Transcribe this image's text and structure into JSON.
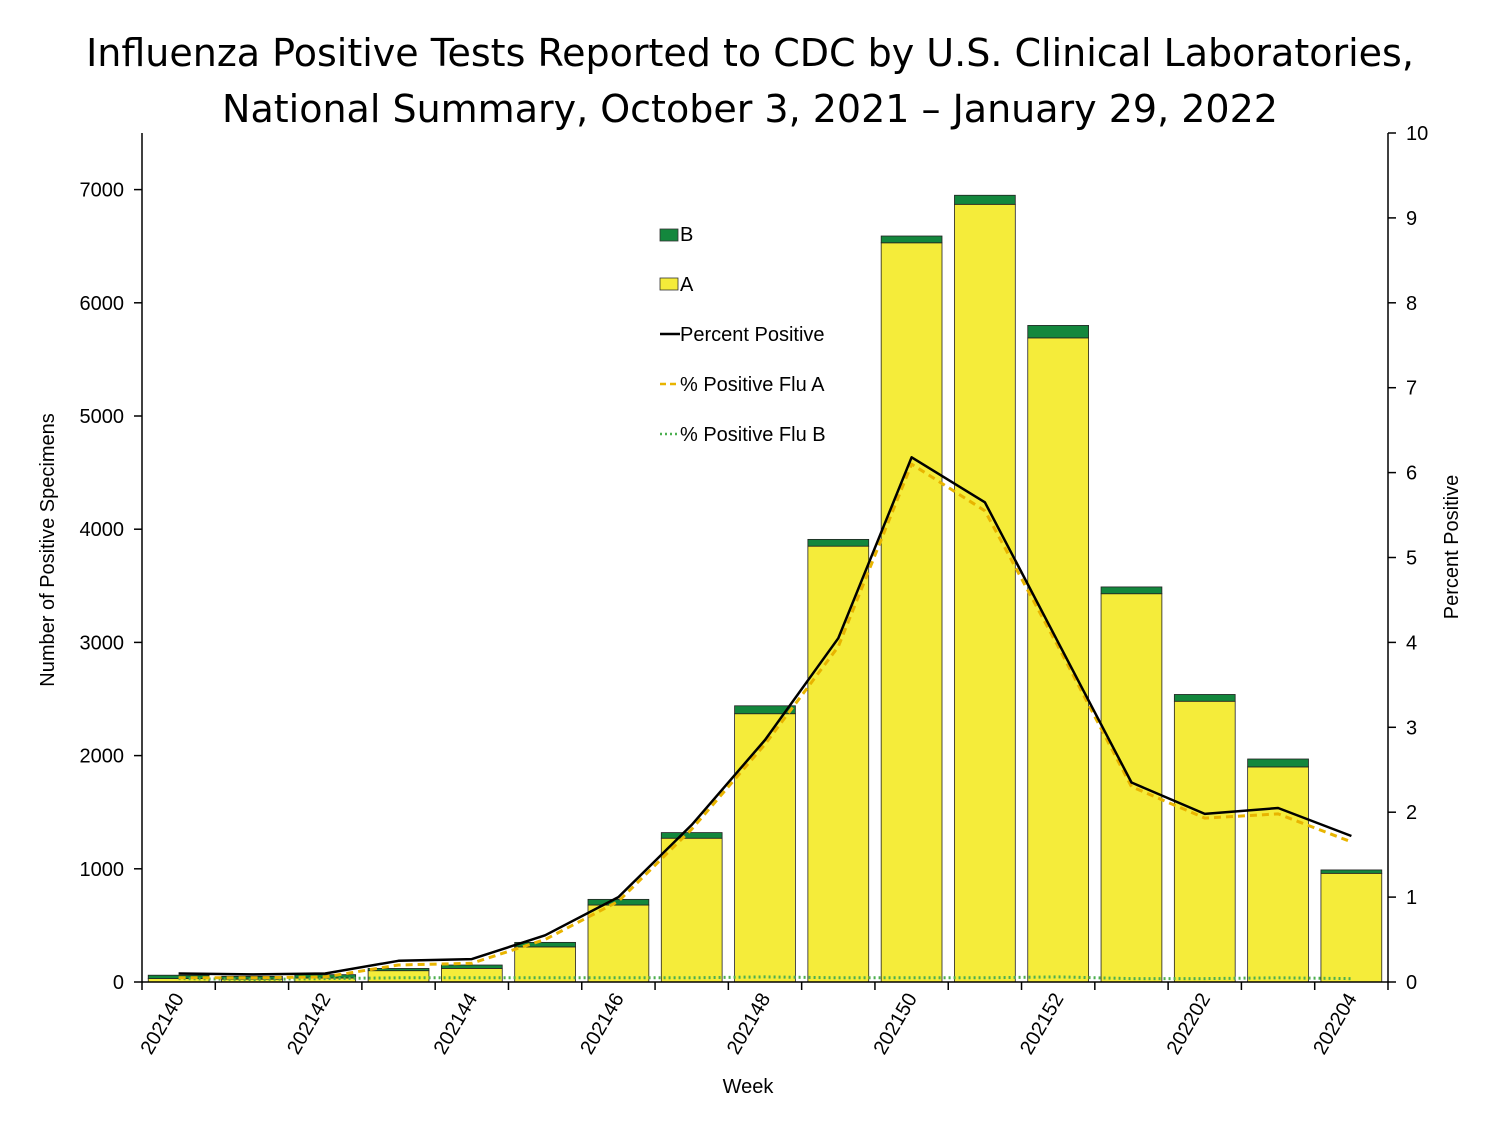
{
  "chart_data": {
    "type": "bar",
    "title": "Influenza Positive Tests Reported to CDC by U.S. Clinical Laboratories,",
    "subtitle": "National Summary, October 3, 2021 – January 29, 2022",
    "xlabel": "Week",
    "ylabel": "Number of Positive Specimens",
    "y2label": "Percent Positive",
    "ylim": [
      0,
      7500
    ],
    "y2lim": [
      0,
      10
    ],
    "yticks": [
      0,
      1000,
      2000,
      3000,
      4000,
      5000,
      6000,
      7000
    ],
    "y2ticks": [
      0,
      1,
      2,
      3,
      4,
      5,
      6,
      7,
      8,
      9,
      10
    ],
    "categories": [
      "202140",
      "202141",
      "202142",
      "202143",
      "202144",
      "202145",
      "202146",
      "202147",
      "202148",
      "202149",
      "202150",
      "202151",
      "202152",
      "202201",
      "202202",
      "202203",
      "202204"
    ],
    "xtick_labels": [
      "202140",
      "202142",
      "202144",
      "202146",
      "202148",
      "202150",
      "202152",
      "202202",
      "202204"
    ],
    "series": [
      {
        "name": "A",
        "kind": "bar",
        "color": "#F5EC3A",
        "values": [
          30,
          25,
          35,
          100,
          120,
          310,
          680,
          1270,
          2370,
          3850,
          6530,
          6870,
          5690,
          3430,
          2480,
          1900,
          960
        ]
      },
      {
        "name": "B",
        "kind": "bar",
        "color": "#13873D",
        "values": [
          30,
          25,
          30,
          20,
          30,
          40,
          50,
          50,
          70,
          60,
          60,
          80,
          110,
          60,
          60,
          70,
          30
        ]
      },
      {
        "name": "Percent Positive",
        "kind": "line",
        "axis": "right",
        "color": "#000000",
        "values": [
          0.1,
          0.09,
          0.1,
          0.25,
          0.27,
          0.55,
          1.0,
          1.85,
          2.85,
          4.05,
          6.18,
          5.65,
          4.0,
          2.35,
          1.98,
          2.05,
          1.72
        ]
      },
      {
        "name": "% Positive Flu A",
        "kind": "line",
        "axis": "right",
        "color": "#E8B400",
        "dash": "dashed",
        "values": [
          0.05,
          0.05,
          0.06,
          0.2,
          0.22,
          0.5,
          0.95,
          1.8,
          2.8,
          3.95,
          6.1,
          5.55,
          3.95,
          2.3,
          1.93,
          1.98,
          1.65
        ]
      },
      {
        "name": "% Positive Flu B",
        "kind": "line",
        "axis": "right",
        "color": "#4CAF50",
        "dash": "dotted",
        "values": [
          0.04,
          0.03,
          0.04,
          0.05,
          0.05,
          0.05,
          0.05,
          0.05,
          0.06,
          0.05,
          0.05,
          0.05,
          0.06,
          0.04,
          0.04,
          0.05,
          0.04
        ]
      }
    ],
    "legend": [
      "B",
      "A",
      "Percent Positive",
      "% Positive Flu A",
      "% Positive Flu B"
    ],
    "legend_position": "top-center",
    "grid": false
  }
}
